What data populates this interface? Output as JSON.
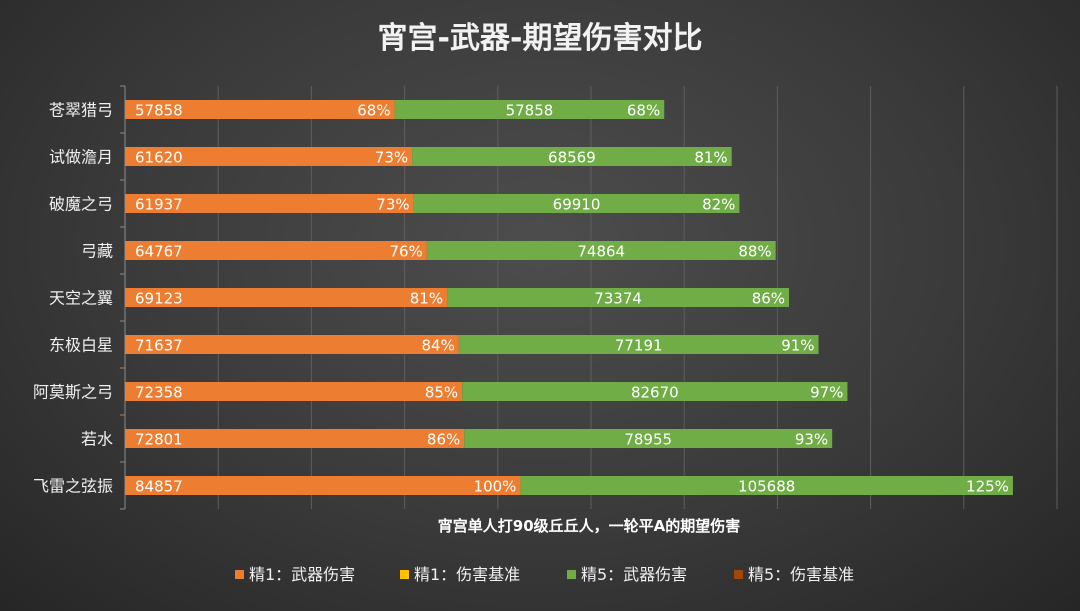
{
  "chart_data": {
    "type": "bar",
    "orientation": "horizontal",
    "stacked": true,
    "title": "宵宫-武器-期望伤害对比",
    "xlabel": "宵宫单人打90级丘丘人，一轮平A的期望伤害",
    "ylabel": "",
    "categories": [
      "苍翠猎弓",
      "试做澹月",
      "破魔之弓",
      "弓藏",
      "天空之翼",
      "东极白星",
      "阿莫斯之弓",
      "若水",
      "飞雷之弦振"
    ],
    "xlim": [
      0,
      200000
    ],
    "grid_step": 20000,
    "series": [
      {
        "name": "精1：武器伤害",
        "color": "#ed7d31",
        "values": [
          57858,
          61620,
          61937,
          64767,
          69123,
          71637,
          72358,
          72801,
          84857
        ],
        "percent_labels": [
          "68%",
          "73%",
          "73%",
          "76%",
          "81%",
          "84%",
          "85%",
          "86%",
          "100%"
        ]
      },
      {
        "name": "精1：伤害基准",
        "color": "#ffc000",
        "values": [
          0,
          0,
          0,
          0,
          0,
          0,
          0,
          0,
          0
        ]
      },
      {
        "name": "精5：武器伤害",
        "color": "#70ad47",
        "values": [
          57858,
          68569,
          69910,
          74864,
          73374,
          77191,
          82670,
          78955,
          105688
        ],
        "percent_labels": [
          "68%",
          "81%",
          "82%",
          "88%",
          "86%",
          "91%",
          "97%",
          "93%",
          "125%"
        ]
      },
      {
        "name": "精5：伤害基准",
        "color": "#9e480e",
        "values": [
          0,
          0,
          0,
          0,
          0,
          0,
          0,
          0,
          0
        ]
      }
    ],
    "legend_position": "bottom"
  }
}
